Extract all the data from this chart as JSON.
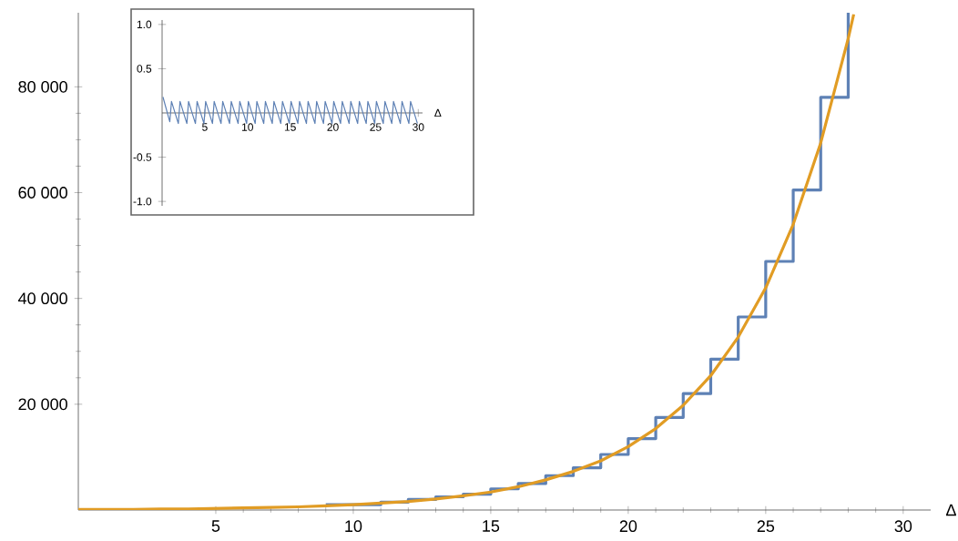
{
  "chart_data": [
    {
      "type": "line",
      "xlabel": "Δ",
      "xlim": [
        0,
        31
      ],
      "ylim": [
        0,
        94000
      ],
      "xticks": [
        5,
        10,
        15,
        20,
        25,
        30
      ],
      "yticks": [
        {
          "value": 20000,
          "label": "20 000"
        },
        {
          "value": 40000,
          "label": "40 000"
        },
        {
          "value": 60000,
          "label": "60 000"
        },
        {
          "value": 80000,
          "label": "80 000"
        }
      ],
      "series": [
        {
          "type": "step",
          "color": "#5e81b5",
          "x": [
            9,
            10,
            11,
            12,
            13,
            14,
            15,
            16,
            17,
            18,
            19,
            20,
            21,
            22,
            23,
            24,
            25,
            26,
            27,
            28
          ],
          "values": [
            1000,
            1000,
            1500,
            2000,
            2500,
            3000,
            4000,
            5000,
            6500,
            8000,
            10500,
            13500,
            17500,
            22000,
            28500,
            36500,
            47000,
            60500,
            78000,
            94000
          ]
        },
        {
          "type": "line",
          "color": "#e19c24",
          "x": [
            0,
            1,
            2,
            3,
            4,
            5,
            6,
            7,
            8,
            9,
            10,
            11,
            12,
            13,
            14,
            15,
            16,
            17,
            18,
            19,
            20,
            21,
            22,
            23,
            24,
            25,
            26,
            27,
            28,
            28.2
          ],
          "values": [
            100,
            100,
            100,
            200,
            200,
            300,
            400,
            500,
            600,
            800,
            1000,
            1300,
            1600,
            2100,
            2700,
            3400,
            4400,
            5700,
            7300,
            9300,
            12000,
            15400,
            19800,
            25400,
            32700,
            42000,
            54000,
            69400,
            89100,
            93700
          ]
        }
      ]
    },
    {
      "type": "line",
      "xlabel": "Δ",
      "xlim": [
        0,
        30.5
      ],
      "ylim": [
        -1.05,
        1.05
      ],
      "xticks": [
        5,
        10,
        15,
        20,
        25,
        30
      ],
      "yticks": [
        {
          "value": -1,
          "label": "-1.0"
        },
        {
          "value": -0.5,
          "label": "-0.5"
        },
        {
          "value": 0.5,
          "label": "0.5"
        },
        {
          "value": 1,
          "label": "1.0"
        }
      ],
      "series": [
        {
          "type": "line",
          "color": "#5e81b5",
          "x": [
            0.1,
            0.9,
            1.1,
            1.9,
            2.1,
            2.9,
            3.1,
            3.9,
            4.1,
            4.9,
            5.1,
            5.9,
            6.1,
            6.9,
            7.1,
            7.9,
            8.1,
            8.9,
            9.1,
            9.9,
            10.1,
            10.9,
            11.1,
            11.9,
            12.1,
            12.9,
            13.1,
            13.9,
            14.1,
            14.9,
            15.1,
            15.9,
            16.1,
            16.9,
            17.1,
            17.9,
            18.1,
            18.9,
            19.1,
            19.9,
            20.1,
            20.9,
            21.1,
            21.9,
            22.1,
            22.9,
            23.1,
            23.9,
            24.1,
            24.9,
            25.1,
            25.9,
            26.1,
            26.9,
            27.1,
            27.9,
            28.1,
            28.9,
            29.1,
            29.9
          ],
          "values": [
            0.18,
            -0.1,
            0.13,
            -0.12,
            0.13,
            -0.12,
            0.13,
            -0.12,
            0.13,
            -0.12,
            0.13,
            -0.12,
            0.13,
            -0.12,
            0.13,
            -0.12,
            0.13,
            -0.12,
            0.13,
            -0.12,
            0.13,
            -0.12,
            0.13,
            -0.12,
            0.13,
            -0.12,
            0.13,
            -0.12,
            0.13,
            -0.12,
            0.13,
            -0.12,
            0.13,
            -0.12,
            0.13,
            -0.12,
            0.13,
            -0.12,
            0.13,
            -0.12,
            0.13,
            -0.12,
            0.13,
            -0.12,
            0.13,
            -0.12,
            0.13,
            -0.12,
            0.13,
            -0.12,
            0.13,
            -0.12,
            0.13,
            -0.12,
            0.13,
            -0.12,
            0.13,
            -0.12,
            0.13,
            -0.12
          ]
        }
      ]
    }
  ]
}
